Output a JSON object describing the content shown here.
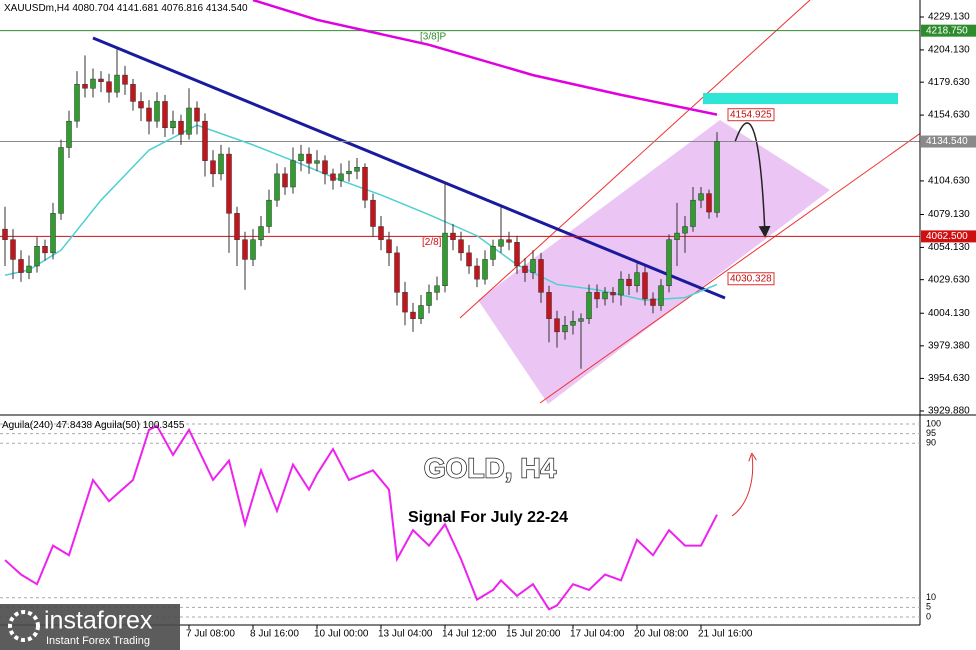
{
  "chart_data": {
    "type": "candlestick",
    "symbol": "XAUUSDm,H4",
    "ohlc_labels": [
      "4080.704",
      "4141.681",
      "4076.816",
      "4134.540"
    ],
    "up_color": "#2f9e2f",
    "down_color": "#c4141c",
    "candles": [
      [
        4068,
        4085,
        4040,
        4060
      ],
      [
        4060,
        4068,
        4030,
        4045
      ],
      [
        4045,
        4052,
        4028,
        4035
      ],
      [
        4035,
        4048,
        4030,
        4040
      ],
      [
        4040,
        4062,
        4035,
        4055
      ],
      [
        4055,
        4060,
        4044,
        4050
      ],
      [
        4050,
        4088,
        4045,
        4080
      ],
      [
        4080,
        4136,
        4075,
        4130
      ],
      [
        4130,
        4158,
        4122,
        4150
      ],
      [
        4150,
        4188,
        4145,
        4178
      ],
      [
        4178,
        4200,
        4168,
        4175
      ],
      [
        4175,
        4190,
        4168,
        4182
      ],
      [
        4182,
        4188,
        4172,
        4180
      ],
      [
        4180,
        4186,
        4164,
        4172
      ],
      [
        4172,
        4205,
        4168,
        4185
      ],
      [
        4185,
        4192,
        4170,
        4178
      ],
      [
        4178,
        4182,
        4158,
        4165
      ],
      [
        4165,
        4172,
        4150,
        4160
      ],
      [
        4160,
        4166,
        4140,
        4150
      ],
      [
        4150,
        4172,
        4145,
        4165
      ],
      [
        4165,
        4170,
        4138,
        4145
      ],
      [
        4145,
        4158,
        4140,
        4150
      ],
      [
        4150,
        4155,
        4132,
        4140
      ],
      [
        4140,
        4175,
        4136,
        4160
      ],
      [
        4160,
        4165,
        4140,
        4150
      ],
      [
        4150,
        4156,
        4108,
        4120
      ],
      [
        4120,
        4128,
        4100,
        4110
      ],
      [
        4110,
        4132,
        4105,
        4125
      ],
      [
        4125,
        4130,
        4050,
        4080
      ],
      [
        4080,
        4085,
        4040,
        4060
      ],
      [
        4060,
        4066,
        4022,
        4045
      ],
      [
        4045,
        4068,
        4040,
        4060
      ],
      [
        4060,
        4078,
        4055,
        4070
      ],
      [
        4070,
        4098,
        4065,
        4090
      ],
      [
        4090,
        4118,
        4085,
        4110
      ],
      [
        4110,
        4115,
        4094,
        4100
      ],
      [
        4100,
        4130,
        4095,
        4120
      ],
      [
        4120,
        4132,
        4112,
        4125
      ],
      [
        4125,
        4130,
        4110,
        4118
      ],
      [
        4118,
        4128,
        4112,
        4120
      ],
      [
        4120,
        4124,
        4102,
        4110
      ],
      [
        4110,
        4114,
        4098,
        4105
      ],
      [
        4105,
        4118,
        4100,
        4110
      ],
      [
        4110,
        4120,
        4104,
        4112
      ],
      [
        4112,
        4122,
        4106,
        4115
      ],
      [
        4115,
        4118,
        4084,
        4090
      ],
      [
        4090,
        4095,
        4062,
        4070
      ],
      [
        4070,
        4078,
        4052,
        4060
      ],
      [
        4060,
        4066,
        4040,
        4050
      ],
      [
        4050,
        4055,
        4010,
        4020
      ],
      [
        4020,
        4028,
        3995,
        4005
      ],
      [
        4005,
        4012,
        3990,
        4000
      ],
      [
        4000,
        4018,
        3996,
        4010
      ],
      [
        4010,
        4026,
        4004,
        4020
      ],
      [
        4020,
        4032,
        4014,
        4025
      ],
      [
        4025,
        4104,
        4020,
        4065
      ],
      [
        4065,
        4072,
        4052,
        4060
      ],
      [
        4060,
        4066,
        4044,
        4050
      ],
      [
        4050,
        4056,
        4034,
        4040
      ],
      [
        4040,
        4046,
        4024,
        4030
      ],
      [
        4030,
        4052,
        4026,
        4045
      ],
      [
        4045,
        4060,
        4040,
        4055
      ],
      [
        4055,
        4085,
        4050,
        4060
      ],
      [
        4060,
        4066,
        4052,
        4058
      ],
      [
        4058,
        4063,
        4034,
        4040
      ],
      [
        4040,
        4046,
        4028,
        4035
      ],
      [
        4035,
        4052,
        4030,
        4045
      ],
      [
        4045,
        4050,
        4012,
        4020
      ],
      [
        4020,
        4025,
        3982,
        4000
      ],
      [
        4000,
        4006,
        3978,
        3990
      ],
      [
        3990,
        4002,
        3984,
        3995
      ],
      [
        3995,
        4006,
        3988,
        3998
      ],
      [
        3998,
        4004,
        3962,
        4000
      ],
      [
        4000,
        4026,
        3996,
        4020
      ],
      [
        4020,
        4026,
        4008,
        4015
      ],
      [
        4015,
        4024,
        4010,
        4020
      ],
      [
        4020,
        4024,
        4012,
        4018
      ],
      [
        4018,
        4036,
        4010,
        4030
      ],
      [
        4030,
        4034,
        4018,
        4025
      ],
      [
        4025,
        4042,
        4020,
        4035
      ],
      [
        4035,
        4040,
        4010,
        4015
      ],
      [
        4015,
        4020,
        4004,
        4010
      ],
      [
        4010,
        4030,
        4006,
        4025
      ],
      [
        4025,
        4064,
        4020,
        4060
      ],
      [
        4060,
        4088,
        4040,
        4065
      ],
      [
        4065,
        4078,
        4050,
        4070
      ],
      [
        4070,
        4100,
        4066,
        4090
      ],
      [
        4090,
        4100,
        4084,
        4095
      ],
      [
        4095,
        4098,
        4076,
        4081
      ],
      [
        4080.704,
        4141.681,
        4076.816,
        4134.54
      ]
    ],
    "categories": [
      null,
      null,
      null,
      null,
      null,
      null,
      null,
      null,
      null,
      null,
      null,
      null,
      null,
      null,
      null,
      null,
      null,
      null,
      null,
      null,
      null,
      null,
      null,
      "7 Jul 08:00",
      null,
      null,
      null,
      null,
      null,
      null,
      null,
      "8 Jul 16:00",
      null,
      null,
      null,
      null,
      null,
      null,
      null,
      "10 Jul 00:00",
      null,
      null,
      null,
      null,
      null,
      null,
      null,
      "13 Jul 04:00",
      null,
      null,
      null,
      null,
      null,
      null,
      null,
      "14 Jul 12:00",
      null,
      null,
      null,
      null,
      null,
      null,
      null,
      "15 Jul 20:00",
      null,
      null,
      null,
      null,
      null,
      null,
      null,
      "17 Jul 04:00",
      null,
      null,
      null,
      null,
      null,
      null,
      null,
      "20 Jul 08:00",
      null,
      null,
      null,
      null,
      null,
      null,
      null,
      "21 Jul 16:00",
      null,
      null
    ],
    "ylim": [
      3929.88,
      4229.13
    ],
    "yticks": [
      {
        "value": 4229.13,
        "label": "4229.130"
      },
      {
        "value": 4204.13,
        "label": "4204.130"
      },
      {
        "value": 4179.63,
        "label": "4179.630"
      },
      {
        "value": 4154.63,
        "label": "4154.630"
      },
      {
        "value": 4104.63,
        "label": "4104.630"
      },
      {
        "value": 4079.13,
        "label": "4079.130"
      },
      {
        "value": 4054.13,
        "label": "4054.130"
      },
      {
        "value": 4029.63,
        "label": "4029.630"
      },
      {
        "value": 4004.13,
        "label": "4004.130"
      },
      {
        "value": 3979.38,
        "label": "3979.380"
      },
      {
        "value": 3954.63,
        "label": "3954.630"
      },
      {
        "value": 3929.88,
        "label": "3929.880"
      }
    ],
    "moving_averages": [
      {
        "color": "#e000e0",
        "x": [
          31,
          39,
          53,
          66,
          77,
          89
        ],
        "values": [
          4242,
          4227,
          4208,
          4185,
          4170,
          4155
        ]
      },
      {
        "color": "#4fd0d0",
        "x": [
          0,
          3,
          7,
          12,
          18,
          24,
          31,
          36,
          42,
          47,
          53,
          59,
          64,
          69,
          74,
          80,
          85,
          89
        ],
        "values": [
          4033,
          4037,
          4052,
          4090,
          4128,
          4147,
          4132,
          4120,
          4105,
          4094,
          4079,
          4063,
          4041,
          4026,
          4022,
          4014,
          4016,
          4026
        ]
      }
    ],
    "levels": [
      {
        "tag": "[3/8]P",
        "color": "#2e8b2e",
        "price": {
          "value": 4218.75,
          "label": "4218.750"
        }
      },
      {
        "color": "#8a8a8a",
        "price": {
          "value": 4134.54,
          "label": "4134.540"
        }
      },
      {
        "tag": "[2/8]",
        "color": "#d01010",
        "price": {
          "value": 4062.5,
          "label": "4062.500"
        }
      }
    ],
    "callouts": [
      4154.925,
      4030.328
    ],
    "title": "GOLD, H4",
    "subtitle": "Signal For July 22-24",
    "indicator": {
      "type": "line",
      "color": "#ee22ee",
      "legend": [
        "Aguila(240)",
        47.8438,
        "Aguila(50)",
        100.3455
      ],
      "ylim": [
        0,
        100
      ],
      "yticks": [
        100,
        95,
        90,
        10,
        5,
        0
      ],
      "x": [
        0,
        2,
        4,
        6,
        8,
        11,
        13,
        16,
        18,
        19,
        21,
        23,
        26,
        28,
        30,
        32,
        34,
        36,
        38,
        39,
        41,
        43,
        46,
        48,
        49,
        51,
        53,
        55,
        57,
        59,
        61,
        62,
        64,
        66,
        68,
        69,
        71,
        73,
        75,
        77,
        79,
        81,
        83,
        85,
        87,
        89
      ],
      "values": [
        29.5,
        22,
        17,
        37,
        32,
        71,
        60,
        71,
        97,
        99,
        84,
        97,
        71,
        81,
        48,
        76,
        55,
        79,
        66,
        74,
        87,
        71,
        76,
        66,
        30,
        45,
        37,
        48,
        30,
        9,
        14,
        19,
        11,
        17,
        4,
        6,
        17,
        14,
        22,
        19,
        40,
        32,
        45,
        37,
        37,
        53
      ]
    },
    "brand": "instaforex",
    "tagline": "Instant Forex Trading"
  }
}
